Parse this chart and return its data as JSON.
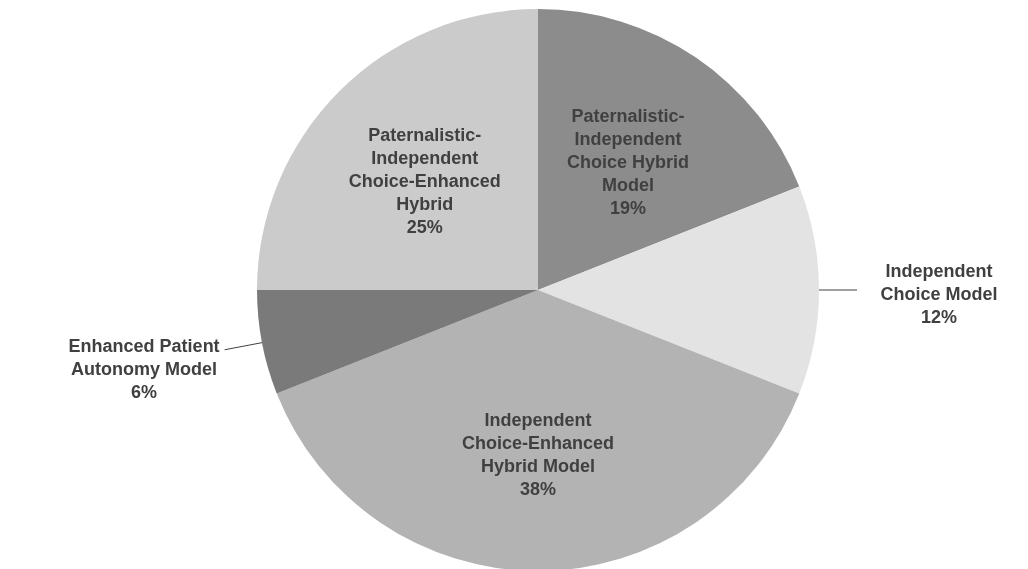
{
  "chart_data": {
    "type": "pie",
    "categories": [
      "Paternalistic-\nIndependent\nChoice Hybrid\nModel",
      "Independent\nChoice Model",
      "Independent\nChoice-Enhanced\nHybrid Model",
      "Enhanced Patient\nAutonomy Model",
      "Paternalistic-\nIndependent\nChoice-Enhanced\nHybrid"
    ],
    "values": [
      19,
      12,
      38,
      6,
      25
    ],
    "value_labels": [
      "19%",
      "12%",
      "38%",
      "6%",
      "25%"
    ],
    "colors": [
      "#8c8c8c",
      "#e3e3e3",
      "#b3b3b3",
      "#7a7a7a",
      "#cbcbcb"
    ]
  }
}
